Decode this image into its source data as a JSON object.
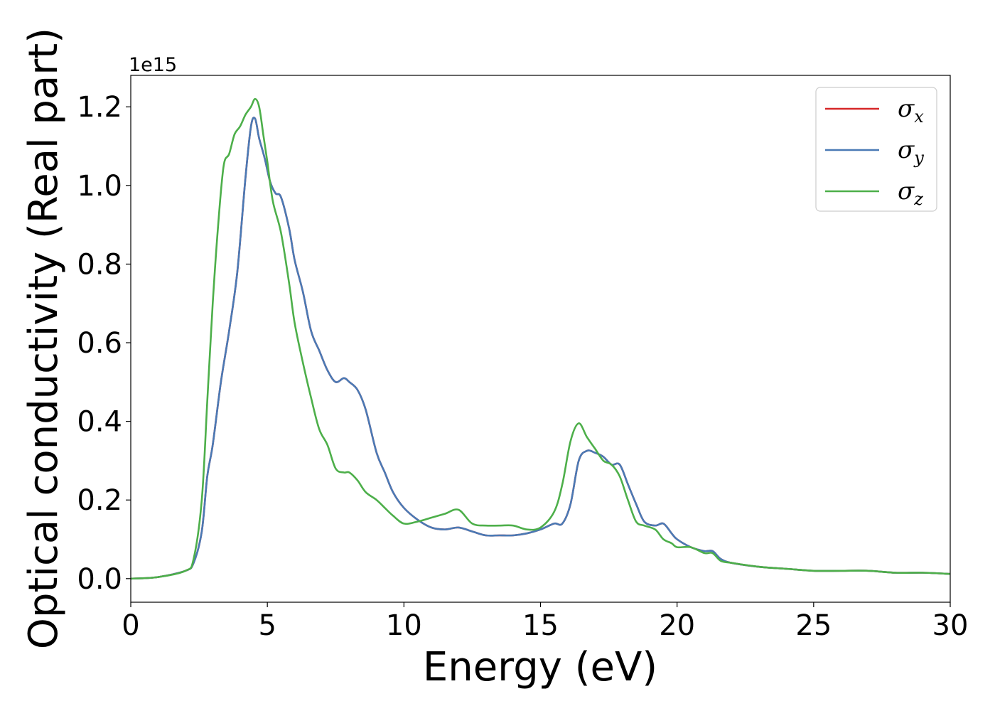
{
  "chart_data": {
    "type": "line",
    "xlabel": "Energy (eV)",
    "ylabel": "Optical conductivity (Real part)",
    "y_offset_text": "1e15",
    "xlim": [
      0,
      30
    ],
    "ylim": [
      -0.06,
      1.28
    ],
    "xticks": [
      0,
      5,
      10,
      15,
      20,
      25,
      30
    ],
    "xtick_labels": [
      "0",
      "5",
      "10",
      "15",
      "20",
      "25",
      "30"
    ],
    "yticks": [
      0.0,
      0.2,
      0.4,
      0.6,
      0.8,
      1.0,
      1.2
    ],
    "ytick_labels": [
      "0.0",
      "0.2",
      "0.4",
      "0.6",
      "0.8",
      "1.0",
      "1.2"
    ],
    "grid": false,
    "legend_position": "upper right",
    "series": [
      {
        "name": "σx",
        "legend_symbol": "σ",
        "legend_subscript": "x",
        "color": "#d62728",
        "x": [
          0,
          1,
          2,
          2.3,
          2.6,
          2.8,
          3.0,
          3.3,
          3.6,
          3.9,
          4.2,
          4.4,
          4.55,
          4.7,
          4.9,
          5.1,
          5.3,
          5.5,
          5.8,
          6.0,
          6.3,
          6.6,
          6.9,
          7.2,
          7.5,
          7.8,
          8.0,
          8.3,
          8.6,
          9.0,
          9.3,
          9.6,
          10.0,
          10.5,
          11.0,
          11.5,
          12.0,
          12.5,
          13.0,
          13.5,
          14.0,
          14.5,
          15.0,
          15.5,
          15.8,
          16.1,
          16.4,
          16.7,
          17.0,
          17.3,
          17.6,
          17.9,
          18.2,
          18.5,
          18.8,
          19.2,
          19.5,
          19.8,
          20.0,
          20.5,
          21.0,
          21.3,
          21.6,
          22,
          23,
          24,
          25,
          26,
          27,
          28,
          29,
          30
        ],
        "values": [
          0,
          0.004,
          0.02,
          0.04,
          0.12,
          0.26,
          0.34,
          0.5,
          0.63,
          0.78,
          1.02,
          1.15,
          1.17,
          1.12,
          1.07,
          1.01,
          0.98,
          0.97,
          0.89,
          0.81,
          0.73,
          0.63,
          0.58,
          0.53,
          0.5,
          0.51,
          0.5,
          0.48,
          0.43,
          0.32,
          0.27,
          0.22,
          0.18,
          0.15,
          0.13,
          0.125,
          0.13,
          0.12,
          0.11,
          0.11,
          0.11,
          0.115,
          0.125,
          0.14,
          0.14,
          0.19,
          0.3,
          0.325,
          0.32,
          0.31,
          0.29,
          0.29,
          0.24,
          0.19,
          0.145,
          0.135,
          0.14,
          0.115,
          0.1,
          0.08,
          0.07,
          0.07,
          0.05,
          0.04,
          0.03,
          0.025,
          0.02,
          0.02,
          0.02,
          0.015,
          0.015,
          0.012
        ]
      },
      {
        "name": "σy",
        "legend_symbol": "σ",
        "legend_subscript": "y",
        "color": "#4a7ab5",
        "x": [
          0,
          1,
          2,
          2.3,
          2.6,
          2.8,
          3.0,
          3.3,
          3.6,
          3.9,
          4.2,
          4.4,
          4.55,
          4.7,
          4.9,
          5.1,
          5.3,
          5.5,
          5.8,
          6.0,
          6.3,
          6.6,
          6.9,
          7.2,
          7.5,
          7.8,
          8.0,
          8.3,
          8.6,
          9.0,
          9.3,
          9.6,
          10.0,
          10.5,
          11.0,
          11.5,
          12.0,
          12.5,
          13.0,
          13.5,
          14.0,
          14.5,
          15.0,
          15.5,
          15.8,
          16.1,
          16.4,
          16.7,
          17.0,
          17.3,
          17.6,
          17.9,
          18.2,
          18.5,
          18.8,
          19.2,
          19.5,
          19.8,
          20.0,
          20.5,
          21.0,
          21.3,
          21.6,
          22,
          23,
          24,
          25,
          26,
          27,
          28,
          29,
          30
        ],
        "values": [
          0,
          0.004,
          0.02,
          0.04,
          0.12,
          0.26,
          0.34,
          0.5,
          0.63,
          0.78,
          1.02,
          1.15,
          1.17,
          1.12,
          1.07,
          1.01,
          0.98,
          0.97,
          0.89,
          0.81,
          0.73,
          0.63,
          0.58,
          0.53,
          0.5,
          0.51,
          0.5,
          0.48,
          0.43,
          0.32,
          0.27,
          0.22,
          0.18,
          0.15,
          0.13,
          0.125,
          0.13,
          0.12,
          0.11,
          0.11,
          0.11,
          0.115,
          0.125,
          0.14,
          0.14,
          0.19,
          0.3,
          0.325,
          0.32,
          0.31,
          0.29,
          0.29,
          0.24,
          0.19,
          0.145,
          0.135,
          0.14,
          0.115,
          0.1,
          0.08,
          0.07,
          0.07,
          0.05,
          0.04,
          0.03,
          0.025,
          0.02,
          0.02,
          0.02,
          0.015,
          0.015,
          0.012
        ]
      },
      {
        "name": "σz",
        "legend_symbol": "σ",
        "legend_subscript": "z",
        "color": "#4daf4a",
        "x": [
          0,
          1,
          2,
          2.3,
          2.6,
          2.8,
          3.0,
          3.2,
          3.4,
          3.6,
          3.8,
          4.0,
          4.2,
          4.4,
          4.55,
          4.7,
          4.85,
          5.0,
          5.2,
          5.5,
          5.8,
          6.0,
          6.3,
          6.6,
          6.9,
          7.2,
          7.5,
          7.8,
          8.0,
          8.3,
          8.6,
          9.0,
          9.3,
          9.6,
          10.0,
          10.5,
          11.0,
          11.5,
          12.0,
          12.5,
          13.0,
          13.5,
          14.0,
          14.5,
          15.0,
          15.5,
          15.8,
          16.1,
          16.4,
          16.7,
          17.0,
          17.3,
          17.6,
          17.9,
          18.2,
          18.5,
          18.8,
          19.2,
          19.5,
          19.8,
          20.0,
          20.5,
          21.0,
          21.3,
          21.6,
          22,
          23,
          24,
          25,
          26,
          27,
          28,
          29,
          30
        ],
        "values": [
          0,
          0.004,
          0.02,
          0.05,
          0.2,
          0.45,
          0.7,
          0.9,
          1.05,
          1.08,
          1.13,
          1.15,
          1.18,
          1.2,
          1.22,
          1.2,
          1.13,
          1.06,
          0.96,
          0.88,
          0.75,
          0.65,
          0.55,
          0.46,
          0.38,
          0.34,
          0.28,
          0.27,
          0.27,
          0.25,
          0.22,
          0.2,
          0.18,
          0.16,
          0.14,
          0.145,
          0.155,
          0.165,
          0.175,
          0.14,
          0.135,
          0.135,
          0.135,
          0.125,
          0.13,
          0.17,
          0.24,
          0.35,
          0.395,
          0.36,
          0.33,
          0.3,
          0.29,
          0.26,
          0.2,
          0.145,
          0.135,
          0.125,
          0.1,
          0.09,
          0.08,
          0.08,
          0.065,
          0.065,
          0.045,
          0.04,
          0.03,
          0.025,
          0.02,
          0.02,
          0.02,
          0.015,
          0.015,
          0.012
        ]
      }
    ]
  }
}
